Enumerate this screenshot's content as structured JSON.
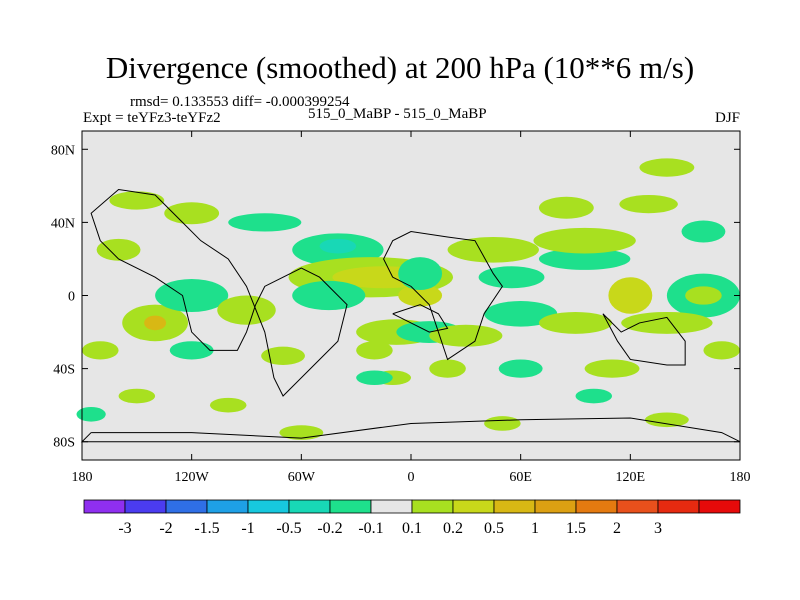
{
  "header": {
    "title": "Divergence (smoothed) at 200 hPa (10**6 m/s)",
    "stats": "rmsd= 0.133553 diff= -0.000399254",
    "expt": "Expt = teYFz3-teYFz2",
    "case": "515_0_MaBP - 515_0_MaBP",
    "season": "DJF"
  },
  "chart_data": {
    "type": "heatmap",
    "title": "Divergence (smoothed) at 200 hPa (10**6 m/s)",
    "xlabel": "",
    "ylabel": "",
    "xlim": [
      -180,
      180
    ],
    "ylim": [
      -90,
      90
    ],
    "x_ticks": [
      {
        "value": -180,
        "label": "180"
      },
      {
        "value": -120,
        "label": "120W"
      },
      {
        "value": -60,
        "label": "60W"
      },
      {
        "value": 0,
        "label": "0"
      },
      {
        "value": 60,
        "label": "60E"
      },
      {
        "value": 120,
        "label": "120E"
      },
      {
        "value": 180,
        "label": "180"
      }
    ],
    "y_ticks": [
      {
        "value": 80,
        "label": "80N"
      },
      {
        "value": 40,
        "label": "40N"
      },
      {
        "value": 0,
        "label": "0"
      },
      {
        "value": -40,
        "label": "40S"
      },
      {
        "value": -80,
        "label": "80S"
      }
    ],
    "neutral_color": "#e6e6e6",
    "colorbar": {
      "colors": [
        "#8f2ff0",
        "#4b3cf0",
        "#2f6fe6",
        "#1ea0e6",
        "#17c8de",
        "#18d8b6",
        "#1ee08c",
        "#e6e6e6",
        "#a8e020",
        "#c8d81a",
        "#d8b814",
        "#dca012",
        "#e47a10",
        "#e8501c",
        "#e62a10",
        "#e60a0a"
      ],
      "labels": [
        "-3",
        "-2",
        "-1.5",
        "-1",
        "-0.5",
        "-0.2",
        "-0.1",
        "0.1",
        "0.2",
        "0.5",
        "1",
        "1.5",
        "2",
        "3"
      ]
    },
    "blobs": [
      {
        "lon": -40,
        "lat": 25,
        "rlon": 25,
        "rlat": 9,
        "v": -0.15
      },
      {
        "lon": -40,
        "lat": 27,
        "rlon": 10,
        "rlat": 4,
        "v": -0.3
      },
      {
        "lon": -22,
        "lat": 10,
        "rlon": 45,
        "rlat": 11,
        "v": 0.15
      },
      {
        "lon": -15,
        "lat": 10,
        "rlon": 28,
        "rlat": 6,
        "v": 0.3
      },
      {
        "lon": 5,
        "lat": 0,
        "rlon": 12,
        "rlat": 6,
        "v": 0.3
      },
      {
        "lon": 5,
        "lat": 12,
        "rlon": 12,
        "rlat": 9,
        "v": -0.15
      },
      {
        "lon": 45,
        "lat": 25,
        "rlon": 25,
        "rlat": 7,
        "v": 0.15
      },
      {
        "lon": 55,
        "lat": 10,
        "rlon": 18,
        "rlat": 6,
        "v": -0.15
      },
      {
        "lon": 95,
        "lat": 20,
        "rlon": 25,
        "rlat": 6,
        "v": -0.15
      },
      {
        "lon": 95,
        "lat": 30,
        "rlon": 28,
        "rlat": 7,
        "v": 0.15
      },
      {
        "lon": 120,
        "lat": 0,
        "rlon": 12,
        "rlat": 10,
        "v": 0.25
      },
      {
        "lon": 160,
        "lat": 0,
        "rlon": 20,
        "rlat": 12,
        "v": -0.15
      },
      {
        "lon": 160,
        "lat": 0,
        "rlon": 10,
        "rlat": 5,
        "v": 0.15
      },
      {
        "lon": -140,
        "lat": -15,
        "rlon": 18,
        "rlat": 10,
        "v": 0.15
      },
      {
        "lon": -140,
        "lat": -15,
        "rlon": 6,
        "rlat": 4,
        "v": 0.6
      },
      {
        "lon": -120,
        "lat": 0,
        "rlon": 20,
        "rlat": 9,
        "v": -0.15
      },
      {
        "lon": -90,
        "lat": -8,
        "rlon": 16,
        "rlat": 8,
        "v": 0.15
      },
      {
        "lon": -45,
        "lat": 0,
        "rlon": 20,
        "rlat": 8,
        "v": -0.15
      },
      {
        "lon": -8,
        "lat": -20,
        "rlon": 22,
        "rlat": 7,
        "v": 0.15
      },
      {
        "lon": 10,
        "lat": -20,
        "rlon": 18,
        "rlat": 6,
        "v": -0.15
      },
      {
        "lon": 30,
        "lat": -22,
        "rlon": 20,
        "rlat": 6,
        "v": 0.15
      },
      {
        "lon": 60,
        "lat": -10,
        "rlon": 20,
        "rlat": 7,
        "v": -0.15
      },
      {
        "lon": 90,
        "lat": -15,
        "rlon": 20,
        "rlat": 6,
        "v": 0.15
      },
      {
        "lon": 140,
        "lat": -15,
        "rlon": 25,
        "rlat": 6,
        "v": 0.15
      },
      {
        "lon": -120,
        "lat": 45,
        "rlon": 15,
        "rlat": 6,
        "v": 0.15
      },
      {
        "lon": -80,
        "lat": 40,
        "rlon": 20,
        "rlat": 5,
        "v": -0.15
      },
      {
        "lon": -160,
        "lat": 25,
        "rlon": 12,
        "rlat": 6,
        "v": 0.15
      },
      {
        "lon": -150,
        "lat": 52,
        "rlon": 15,
        "rlat": 5,
        "v": 0.15
      },
      {
        "lon": 85,
        "lat": 48,
        "rlon": 15,
        "rlat": 6,
        "v": 0.15
      },
      {
        "lon": 130,
        "lat": 50,
        "rlon": 16,
        "rlat": 5,
        "v": 0.15
      },
      {
        "lon": 160,
        "lat": 35,
        "rlon": 12,
        "rlat": 6,
        "v": -0.15
      },
      {
        "lon": 140,
        "lat": 70,
        "rlon": 15,
        "rlat": 5,
        "v": 0.15
      },
      {
        "lon": -120,
        "lat": -30,
        "rlon": 12,
        "rlat": 5,
        "v": -0.15
      },
      {
        "lon": -70,
        "lat": -33,
        "rlon": 12,
        "rlat": 5,
        "v": 0.15
      },
      {
        "lon": -20,
        "lat": -30,
        "rlon": 10,
        "rlat": 5,
        "v": 0.15
      },
      {
        "lon": -10,
        "lat": -45,
        "rlon": 10,
        "rlat": 4,
        "v": 0.15
      },
      {
        "lon": -20,
        "lat": -45,
        "rlon": 10,
        "rlat": 4,
        "v": -0.15
      },
      {
        "lon": 20,
        "lat": -40,
        "rlon": 10,
        "rlat": 5,
        "v": 0.15
      },
      {
        "lon": 60,
        "lat": -40,
        "rlon": 12,
        "rlat": 5,
        "v": -0.15
      },
      {
        "lon": 110,
        "lat": -40,
        "rlon": 15,
        "rlat": 5,
        "v": 0.15
      },
      {
        "lon": 170,
        "lat": -30,
        "rlon": 10,
        "rlat": 5,
        "v": 0.15
      },
      {
        "lon": -170,
        "lat": -30,
        "rlon": 10,
        "rlat": 5,
        "v": 0.15
      },
      {
        "lon": -150,
        "lat": -55,
        "rlon": 10,
        "rlat": 4,
        "v": 0.15
      },
      {
        "lon": -100,
        "lat": -60,
        "rlon": 10,
        "rlat": 4,
        "v": 0.15
      },
      {
        "lon": -60,
        "lat": -75,
        "rlon": 12,
        "rlat": 4,
        "v": 0.15
      },
      {
        "lon": 50,
        "lat": -70,
        "rlon": 10,
        "rlat": 4,
        "v": 0.15
      },
      {
        "lon": 140,
        "lat": -68,
        "rlon": 12,
        "rlat": 4,
        "v": 0.15
      },
      {
        "lon": -175,
        "lat": -65,
        "rlon": 8,
        "rlat": 4,
        "v": -0.15
      },
      {
        "lon": 100,
        "lat": -55,
        "rlon": 10,
        "rlat": 4,
        "v": -0.15
      }
    ]
  }
}
